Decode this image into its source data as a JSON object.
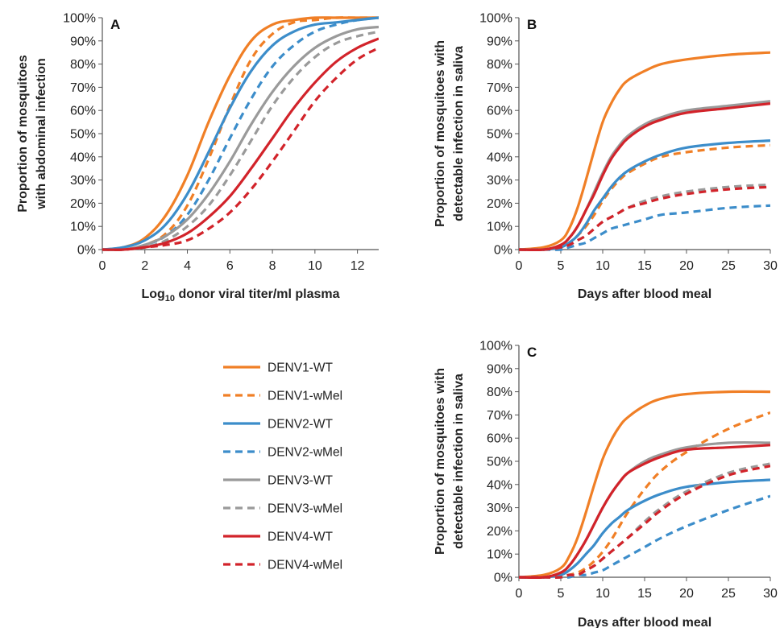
{
  "legend": [
    {
      "name": "DENV1-WT",
      "color": "#F07F26",
      "dashed": false
    },
    {
      "name": "DENV1-wMel",
      "color": "#F07F26",
      "dashed": true
    },
    {
      "name": "DENV2-WT",
      "color": "#3C8DCA",
      "dashed": false
    },
    {
      "name": "DENV2-wMel",
      "color": "#3C8DCA",
      "dashed": true
    },
    {
      "name": "DENV3-WT",
      "color": "#9A9A9A",
      "dashed": false
    },
    {
      "name": "DENV3-wMel",
      "color": "#9A9A9A",
      "dashed": true
    },
    {
      "name": "DENV4-WT",
      "color": "#D2232A",
      "dashed": false
    },
    {
      "name": "DENV4-wMel",
      "color": "#D2232A",
      "dashed": true
    }
  ],
  "chart_data": [
    {
      "panel": "A",
      "type": "line",
      "xlabel_prefix": "Log",
      "xlabel_sub": "10",
      "xlabel_rest": " donor viral titer/ml plasma",
      "ylabel": [
        "Proportion of mosquitoes",
        "with abdominal infection"
      ],
      "xlim": [
        0,
        13
      ],
      "ylim": [
        0,
        100
      ],
      "xticks": [
        "0",
        "2",
        "4",
        "6",
        "8",
        "10",
        "12"
      ],
      "yticks": [
        "0%",
        "10%",
        "20%",
        "30%",
        "40%",
        "50%",
        "60%",
        "70%",
        "80%",
        "90%",
        "100%"
      ],
      "x": [
        0,
        1,
        2,
        3,
        4,
        5,
        6,
        7,
        8,
        9,
        10,
        11,
        12,
        13
      ],
      "series": [
        {
          "name": "DENV1-WT",
          "values": [
            0,
            1,
            5,
            15,
            32,
            55,
            75,
            90,
            97,
            99,
            100,
            100,
            100,
            100
          ]
        },
        {
          "name": "DENV1-wMel",
          "values": [
            0,
            0,
            2,
            7,
            19,
            39,
            62,
            82,
            93,
            98,
            99,
            100,
            100,
            100
          ]
        },
        {
          "name": "DENV2-WT",
          "values": [
            0,
            1,
            4,
            11,
            24,
            42,
            61,
            77,
            88,
            94,
            97,
            98,
            99,
            100
          ]
        },
        {
          "name": "DENV2-wMel",
          "values": [
            0,
            0,
            2,
            6,
            15,
            30,
            48,
            65,
            79,
            88,
            94,
            97,
            99,
            100
          ]
        },
        {
          "name": "DENV3-WT",
          "values": [
            0,
            0,
            2,
            6,
            13,
            24,
            38,
            54,
            68,
            79,
            87,
            92,
            95,
            96
          ]
        },
        {
          "name": "DENV3-wMel",
          "values": [
            0,
            0,
            1,
            4,
            10,
            19,
            32,
            47,
            62,
            74,
            83,
            89,
            92,
            94
          ]
        },
        {
          "name": "DENV4-WT",
          "values": [
            0,
            0,
            1,
            3,
            7,
            14,
            23,
            35,
            48,
            61,
            72,
            81,
            87,
            91
          ]
        },
        {
          "name": "DENV4-wMel",
          "values": [
            0,
            0,
            1,
            2,
            4,
            9,
            16,
            26,
            38,
            51,
            64,
            74,
            82,
            87
          ]
        }
      ]
    },
    {
      "panel": "B",
      "type": "line",
      "xlabel": "Days after blood meal",
      "ylabel": [
        "Proportion of mosquitoes with",
        "detectable infection in saliva"
      ],
      "xlim": [
        0,
        30
      ],
      "ylim": [
        0,
        100
      ],
      "xticks": [
        "0",
        "5",
        "10",
        "15",
        "20",
        "25",
        "30"
      ],
      "yticks": [
        "0%",
        "10%",
        "20%",
        "30%",
        "40%",
        "50%",
        "60%",
        "70%",
        "80%",
        "90%",
        "100%"
      ],
      "x": [
        0,
        3,
        5,
        6,
        7,
        8,
        9,
        10,
        11,
        12,
        13,
        15,
        17,
        20,
        25,
        30
      ],
      "series": [
        {
          "name": "DENV1-WT",
          "values": [
            0,
            1,
            4,
            9,
            18,
            30,
            43,
            55,
            63,
            69,
            73,
            77,
            80,
            82,
            84,
            85
          ]
        },
        {
          "name": "DENV1-wMel",
          "values": [
            0,
            0,
            1,
            3,
            6,
            10,
            15,
            21,
            26,
            30,
            33,
            37,
            40,
            42,
            44,
            45
          ]
        },
        {
          "name": "DENV2-WT",
          "values": [
            0,
            0,
            1,
            3,
            6,
            11,
            17,
            22,
            27,
            31,
            34,
            38,
            41,
            44,
            46,
            47
          ]
        },
        {
          "name": "DENV2-wMel",
          "values": [
            0,
            0,
            0,
            1,
            2,
            3,
            5,
            7,
            9,
            10,
            11,
            13,
            15,
            16,
            18,
            19
          ]
        },
        {
          "name": "DENV3-WT",
          "values": [
            0,
            0,
            2,
            5,
            10,
            17,
            25,
            33,
            40,
            45,
            49,
            54,
            57,
            60,
            62,
            64
          ]
        },
        {
          "name": "DENV3-wMel",
          "values": [
            0,
            0,
            1,
            2,
            4,
            6,
            9,
            12,
            14,
            16,
            18,
            21,
            23,
            25,
            27,
            28
          ]
        },
        {
          "name": "DENV4-WT",
          "values": [
            0,
            0,
            2,
            5,
            10,
            17,
            24,
            32,
            39,
            44,
            48,
            53,
            56,
            59,
            61,
            63
          ]
        },
        {
          "name": "DENV4-wMel",
          "values": [
            0,
            0,
            1,
            2,
            4,
            6,
            9,
            12,
            14,
            16,
            18,
            20,
            22,
            24,
            26,
            27
          ]
        }
      ]
    },
    {
      "panel": "C",
      "type": "line",
      "xlabel": "Days after blood meal",
      "ylabel": [
        "Proportion of mosquitoes with",
        "detectable infection in saliva"
      ],
      "xlim": [
        0,
        30
      ],
      "ylim": [
        0,
        100
      ],
      "xticks": [
        "0",
        "5",
        "10",
        "15",
        "20",
        "25",
        "30"
      ],
      "yticks": [
        "0%",
        "10%",
        "20%",
        "30%",
        "40%",
        "50%",
        "60%",
        "70%",
        "80%",
        "90%",
        "100%"
      ],
      "x": [
        0,
        3,
        5,
        6,
        7,
        8,
        9,
        10,
        11,
        12,
        13,
        15,
        17,
        20,
        25,
        30
      ],
      "series": [
        {
          "name": "DENV1-WT",
          "values": [
            0,
            1,
            4,
            9,
            17,
            28,
            40,
            51,
            59,
            65,
            69,
            74,
            77,
            79,
            80,
            80
          ]
        },
        {
          "name": "DENV1-wMel",
          "values": [
            0,
            0,
            0,
            1,
            2,
            4,
            7,
            11,
            16,
            22,
            28,
            38,
            46,
            54,
            64,
            71
          ]
        },
        {
          "name": "DENV2-WT",
          "values": [
            0,
            0,
            1,
            3,
            6,
            10,
            14,
            19,
            23,
            26,
            29,
            33,
            36,
            39,
            41,
            42
          ]
        },
        {
          "name": "DENV2-wMel",
          "values": [
            0,
            0,
            0,
            0,
            1,
            1,
            2,
            3,
            5,
            7,
            9,
            13,
            17,
            22,
            29,
            35
          ]
        },
        {
          "name": "DENV3-WT",
          "values": [
            0,
            0,
            2,
            5,
            10,
            16,
            23,
            30,
            36,
            41,
            45,
            50,
            53,
            56,
            58,
            58
          ]
        },
        {
          "name": "DENV3-wMel",
          "values": [
            0,
            0,
            0,
            1,
            1,
            3,
            5,
            8,
            11,
            14,
            17,
            24,
            30,
            37,
            45,
            49
          ]
        },
        {
          "name": "DENV4-WT",
          "values": [
            0,
            0,
            2,
            5,
            10,
            16,
            23,
            30,
            36,
            41,
            45,
            49,
            52,
            55,
            56,
            57
          ]
        },
        {
          "name": "DENV4-wMel",
          "values": [
            0,
            0,
            0,
            1,
            1,
            3,
            5,
            8,
            11,
            14,
            17,
            23,
            29,
            36,
            44,
            48
          ]
        }
      ]
    }
  ]
}
